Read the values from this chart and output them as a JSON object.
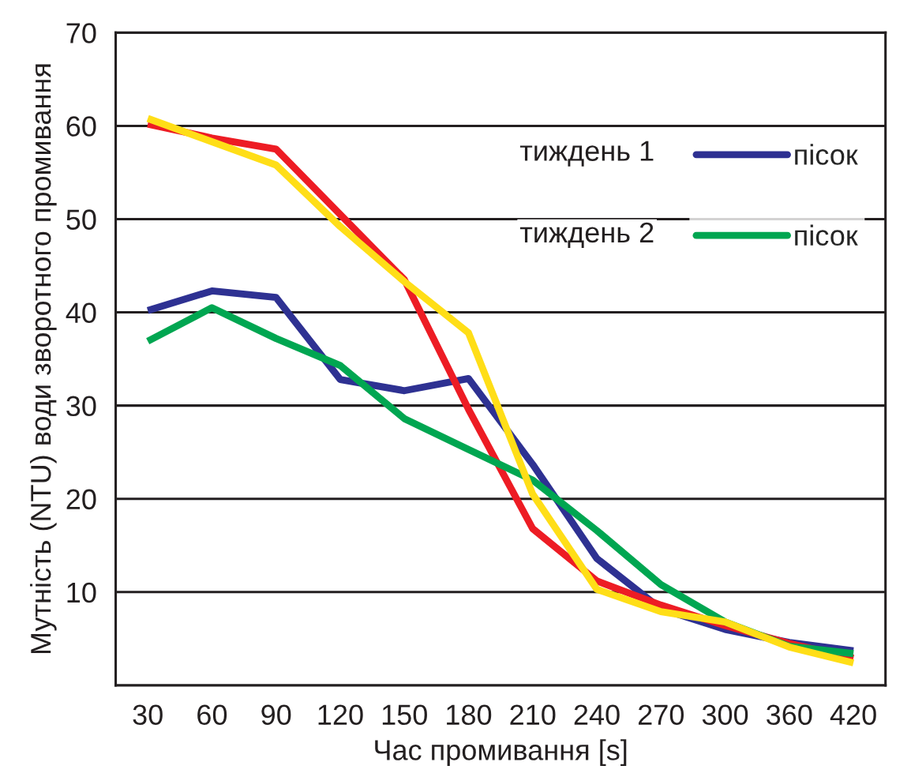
{
  "chart_data": {
    "type": "line",
    "xlabel": "Час промивання [s]",
    "ylabel": "Мутність (NTU) води зворотного промивання",
    "categories": [
      "30",
      "60",
      "90",
      "120",
      "150",
      "180",
      "210",
      "240",
      "270",
      "300",
      "360",
      "420"
    ],
    "ylim": [
      0,
      70
    ],
    "yticks": [
      10,
      20,
      30,
      40,
      50,
      60,
      70
    ],
    "grid": "y",
    "legend": "top right",
    "marker": "none",
    "line_style": "solid",
    "annotations": [
      "тиждень 1",
      "тиждень 2"
    ],
    "series": [
      {
        "name": "пісок",
        "color": "#2e3192",
        "values": [
          40.2,
          42.3,
          41.6,
          32.8,
          31.6,
          32.9,
          23.7,
          13.6,
          8.2,
          6,
          4.6,
          3.7
        ]
      },
      {
        "color": "#ed1c24",
        "values": [
          60.2,
          58.7,
          57.5,
          50.5,
          43.5,
          29.6,
          16.8,
          11.2,
          8.6,
          6.4,
          4.5,
          2.9
        ]
      },
      {
        "name": "пісок",
        "color": "#00a651",
        "values": [
          36.9,
          40.5,
          37.2,
          34.3,
          28.6,
          25.3,
          22,
          16.6,
          10.8,
          6.8,
          4.2,
          3.4
        ]
      },
      {
        "color": "#ffde17",
        "values": [
          60.8,
          58.3,
          55.8,
          49.2,
          43.3,
          37.8,
          20.5,
          10.3,
          7.9,
          6.8,
          4.1,
          2.4
        ]
      }
    ]
  }
}
